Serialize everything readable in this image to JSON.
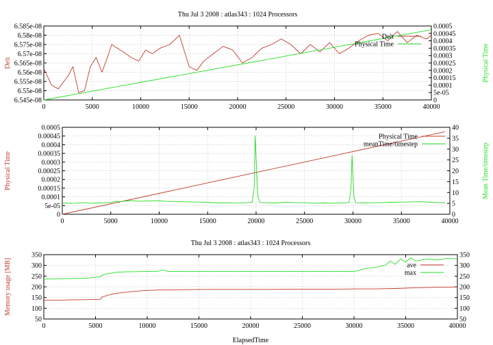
{
  "colors": {
    "red": "#c0392b",
    "green": "#22dd22",
    "axis": "#000000",
    "grid": "#c8c8c8"
  },
  "chart_data": [
    {
      "id": "top",
      "type": "line",
      "title": "Thu Jul  3 2008 : atlas343 : 1024 Processors",
      "xlabel": "",
      "ylabel": "Delt",
      "y2label": "Physical Time",
      "xlim": [
        0,
        40000
      ],
      "ylim": [
        6.545e-08,
        6.585e-08
      ],
      "y2lim": [
        0,
        0.0005
      ],
      "xticks": [
        "0",
        "5000",
        "10000",
        "15000",
        "20000",
        "25000",
        "30000",
        "35000",
        "40000"
      ],
      "yticks": [
        "6.545e-08",
        "6.55e-08",
        "6.555e-08",
        "6.56e-08",
        "6.565e-08",
        "6.57e-08",
        "6.575e-08",
        "6.58e-08",
        "6.585e-08"
      ],
      "y2ticks": [
        "0",
        "5e-05",
        "0.0001",
        "0.00015",
        "0.0002",
        "0.00025",
        "0.0003",
        "0.00035",
        "0.0004",
        "0.00045",
        "0.0005"
      ],
      "legend_position": "top-right",
      "series": [
        {
          "name": "Delt",
          "color": "#c0392b",
          "axis": "y",
          "x": [
            0,
            800,
            1500,
            2500,
            3000,
            3600,
            4200,
            4800,
            5400,
            6000,
            6500,
            7000,
            7600,
            8200,
            9000,
            9800,
            10500,
            11200,
            12000,
            13000,
            14000,
            15000,
            15800,
            16500,
            17500,
            18500,
            19500,
            20500,
            21500,
            22500,
            23500,
            24500,
            25500,
            26500,
            27500,
            28500,
            29500,
            30500,
            31500,
            32500,
            33500,
            34500,
            35500,
            36500,
            37500,
            38500,
            39500,
            40000
          ],
          "y": [
            6.562e-08,
            6.553e-08,
            6.551e-08,
            6.558e-08,
            6.563e-08,
            6.549e-08,
            6.55e-08,
            6.563e-08,
            6.568e-08,
            6.56e-08,
            6.567e-08,
            6.575e-08,
            6.573e-08,
            6.571e-08,
            6.568e-08,
            6.566e-08,
            6.572e-08,
            6.57e-08,
            6.573e-08,
            6.575e-08,
            6.58e-08,
            6.563e-08,
            6.561e-08,
            6.566e-08,
            6.57e-08,
            6.574e-08,
            6.572e-08,
            6.565e-08,
            6.568e-08,
            6.573e-08,
            6.575e-08,
            6.578e-08,
            6.575e-08,
            6.57e-08,
            6.575e-08,
            6.571e-08,
            6.576e-08,
            6.57e-08,
            6.573e-08,
            6.577e-08,
            6.58e-08,
            6.581e-08,
            6.577e-08,
            6.582e-08,
            6.576e-08,
            6.58e-08,
            6.578e-08,
            6.58e-08
          ]
        },
        {
          "name": "Physical Time",
          "color": "#22dd22",
          "axis": "y2",
          "x": [
            0,
            40000
          ],
          "y": [
            0,
            0.000475
          ]
        }
      ]
    },
    {
      "id": "middle",
      "type": "line",
      "title": "",
      "xlabel": "",
      "ylabel": "Physical Time",
      "y2label": "Mean Time/timestep",
      "xlim": [
        0,
        40000
      ],
      "ylim": [
        0,
        0.0005
      ],
      "y2lim": [
        0,
        40
      ],
      "xticks": [
        "0",
        "5000",
        "10000",
        "15000",
        "20000",
        "25000",
        "30000",
        "35000",
        "40000"
      ],
      "yticks": [
        "0",
        "5e-05",
        "0.0001",
        "0.00015",
        "0.0002",
        "0.00025",
        "0.0003",
        "0.00035",
        "0.0004",
        "0.00045",
        "0.0005"
      ],
      "y2ticks": [
        "0",
        "5",
        "10",
        "15",
        "20",
        "25",
        "30",
        "35",
        "40"
      ],
      "legend_position": "top-right",
      "series": [
        {
          "name": "Physical Time",
          "color": "#c0392b",
          "axis": "y",
          "x": [
            0,
            39500
          ],
          "y": [
            0,
            0.000475
          ]
        },
        {
          "name": "meanTime/timestep",
          "color": "#22dd22",
          "axis": "y2",
          "x": [
            0,
            1000,
            2000,
            3000,
            4000,
            5000,
            5500,
            6000,
            7000,
            8000,
            9000,
            10000,
            11000,
            12000,
            13000,
            14000,
            15000,
            16000,
            17000,
            18000,
            19000,
            19600,
            19800,
            19900,
            20000,
            20100,
            20200,
            20400,
            21000,
            22000,
            23000,
            24000,
            25000,
            26000,
            27000,
            28000,
            29000,
            29600,
            29800,
            29900,
            30000,
            30100,
            30300,
            31000,
            32000,
            33000,
            34000,
            35000,
            36000,
            37000,
            38000,
            39000,
            39500
          ],
          "y": [
            5.2,
            5.0,
            5.3,
            5.1,
            5.2,
            5.4,
            6.0,
            5.8,
            6.3,
            6.0,
            6.1,
            6.2,
            5.9,
            5.9,
            5.7,
            5.6,
            5.5,
            5.2,
            5.3,
            5.1,
            5.3,
            5.5,
            12,
            36,
            26,
            15,
            8,
            5.4,
            5.3,
            5.2,
            5.5,
            5.4,
            5.3,
            5.1,
            5.2,
            5.1,
            5.2,
            5.4,
            12,
            27,
            18,
            8,
            5.3,
            5.2,
            5.3,
            5.4,
            5.5,
            5.6,
            5.7,
            5.8,
            5.5,
            5.4,
            5.2
          ]
        }
      ]
    },
    {
      "id": "bottom",
      "type": "line",
      "title": "Thu Jul  3 2008 : atlas343 : 1024 Processors",
      "xlabel": "ElapsedTime",
      "ylabel": "Memory usage [MB]",
      "y2label": "",
      "xlim": [
        0,
        40000
      ],
      "ylim": [
        50,
        350
      ],
      "y2lim": [
        50,
        350
      ],
      "xticks": [
        "0",
        "5000",
        "10000",
        "15000",
        "20000",
        "25000",
        "30000",
        "35000",
        "40000"
      ],
      "yticks": [
        "50",
        "100",
        "150",
        "200",
        "250",
        "300",
        "350"
      ],
      "y2ticks": [
        "50",
        "100",
        "150",
        "200",
        "250",
        "300",
        "350"
      ],
      "legend_position": "top-right",
      "series": [
        {
          "name": "ave",
          "color": "#c0392b",
          "axis": "y",
          "x": [
            0,
            1000,
            2500,
            4000,
            5500,
            5600,
            6000,
            6500,
            7000,
            8000,
            9000,
            10000,
            11000,
            12000,
            14000,
            16000,
            18000,
            20000,
            22000,
            24000,
            26000,
            28000,
            30000,
            32000,
            34000,
            36000,
            38000,
            40000
          ],
          "y": [
            138,
            137,
            139,
            140,
            142,
            152,
            158,
            165,
            170,
            175,
            180,
            183,
            185,
            186,
            187,
            188,
            188,
            188,
            188,
            189,
            189,
            189,
            190,
            190,
            192,
            196,
            198,
            199
          ]
        },
        {
          "name": "max",
          "color": "#22dd22",
          "axis": "y",
          "x": [
            0,
            2000,
            4000,
            5400,
            5500,
            6000,
            6800,
            7000,
            8000,
            9000,
            10000,
            11000,
            11500,
            12000,
            15000,
            20000,
            25000,
            30000,
            30500,
            31000,
            32000,
            33000,
            33500,
            34000,
            34500,
            35000,
            35500,
            36000,
            37000,
            38000,
            39000,
            40000
          ],
          "y": [
            236,
            238,
            240,
            246,
            250,
            260,
            265,
            268,
            270,
            271,
            272,
            272,
            278,
            272,
            272,
            272,
            272,
            272,
            276,
            285,
            290,
            300,
            320,
            305,
            330,
            315,
            335,
            320,
            330,
            325,
            332,
            330
          ]
        }
      ]
    }
  ]
}
